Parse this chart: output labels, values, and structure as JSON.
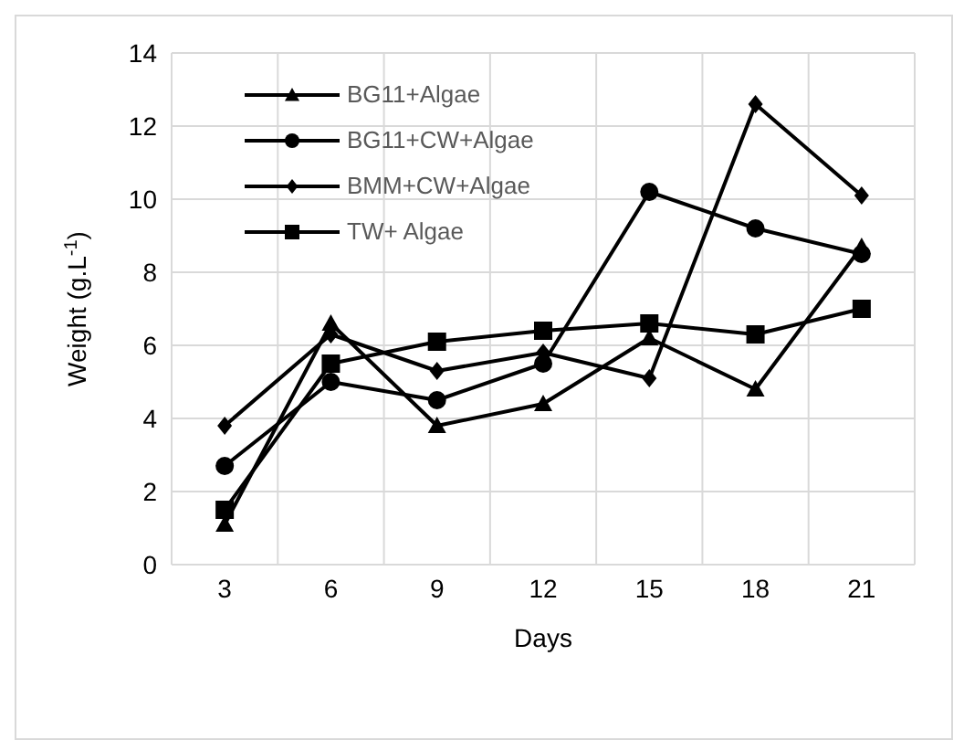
{
  "chart_data": {
    "type": "line",
    "xlabel": "Days",
    "ylabel": "Weight (g.L$^{-1}$)",
    "categories": [
      "3",
      "6",
      "9",
      "12",
      "15",
      "18",
      "21"
    ],
    "series": [
      {
        "name": "BG11+Algae",
        "color": "#000000",
        "marker": "triangle",
        "values": [
          1.1,
          6.6,
          3.8,
          4.4,
          6.2,
          4.8,
          8.7
        ]
      },
      {
        "name": "BG11+CW+Algae",
        "color": "#000000",
        "marker": "circle",
        "values": [
          2.7,
          5.0,
          4.5,
          5.5,
          10.2,
          9.2,
          8.5
        ]
      },
      {
        "name": "BMM+CW+Algae",
        "color": "#000000",
        "marker": "diamond",
        "values": [
          3.8,
          6.3,
          5.3,
          5.8,
          5.1,
          12.6,
          10.1
        ]
      },
      {
        "name": "TW+ Algae",
        "color": "#000000",
        "marker": "square",
        "values": [
          1.5,
          5.5,
          6.1,
          6.4,
          6.6,
          6.3,
          7.0
        ]
      }
    ],
    "ylim": [
      0,
      14
    ],
    "yticks": [
      0,
      2,
      4,
      6,
      8,
      10,
      12,
      14
    ],
    "grid": true,
    "legend": "top left"
  }
}
